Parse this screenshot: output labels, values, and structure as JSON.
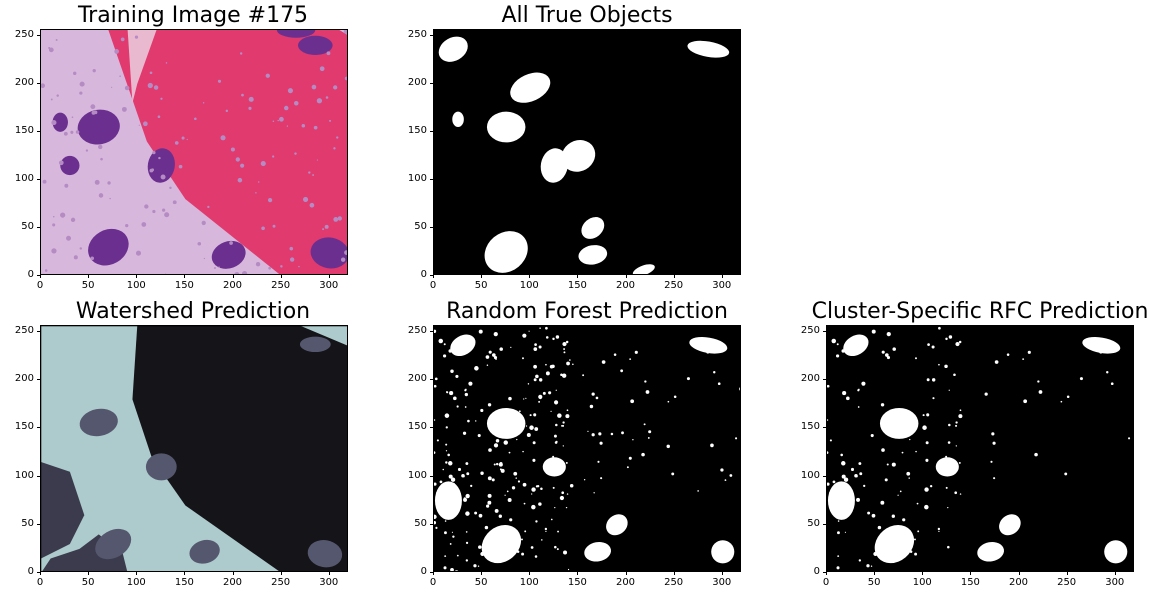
{
  "chart_data": [
    {
      "type": "image",
      "title": "Training Image #175",
      "xlim": [
        0,
        320
      ],
      "ylim": [
        0,
        256
      ],
      "xticks": [
        "0",
        "50",
        "100",
        "150",
        "200",
        "250",
        "300"
      ],
      "yticks": [
        "0",
        "50",
        "100",
        "150",
        "200",
        "250"
      ],
      "content": "histology-he",
      "colors": {
        "bg": "#d7b8dc",
        "stroma": "#e03a6f",
        "nucleus": "#6b2f8f"
      }
    },
    {
      "type": "image",
      "title": "All True Objects",
      "xlim": [
        0,
        320
      ],
      "ylim": [
        0,
        256
      ],
      "xticks": [
        "0",
        "50",
        "100",
        "150",
        "200",
        "250",
        "300"
      ],
      "yticks": [
        "0",
        "50",
        "100",
        "150",
        "200",
        "250"
      ],
      "content": "true-mask",
      "colors": {
        "bg": "#000000",
        "fg": "#ffffff"
      }
    },
    {
      "type": "image",
      "title": "Watershed Prediction",
      "xlim": [
        0,
        320
      ],
      "ylim": [
        0,
        256
      ],
      "xticks": [
        "0",
        "50",
        "100",
        "150",
        "200",
        "250",
        "300"
      ],
      "yticks": [
        "0",
        "50",
        "100",
        "150",
        "200",
        "250"
      ],
      "content": "watershed",
      "colors": {
        "bg": "#adcbcc",
        "dark": "#141419",
        "mid": "#3b3b4d",
        "light": "#55576e"
      }
    },
    {
      "type": "image",
      "title": "Random Forest Prediction",
      "xlim": [
        0,
        320
      ],
      "ylim": [
        0,
        256
      ],
      "xticks": [
        "0",
        "50",
        "100",
        "150",
        "200",
        "250",
        "300"
      ],
      "yticks": [
        "0",
        "50",
        "100",
        "150",
        "200",
        "250"
      ],
      "content": "rf-mask",
      "colors": {
        "bg": "#000000",
        "fg": "#ffffff"
      }
    },
    {
      "type": "image",
      "title": "Cluster-Specific RFC Prediction",
      "xlim": [
        0,
        320
      ],
      "ylim": [
        0,
        256
      ],
      "xticks": [
        "0",
        "50",
        "100",
        "150",
        "200",
        "250",
        "300"
      ],
      "yticks": [
        "0",
        "50",
        "100",
        "150",
        "200",
        "250"
      ],
      "content": "crfc-mask",
      "colors": {
        "bg": "#000000",
        "fg": "#ffffff"
      }
    }
  ]
}
